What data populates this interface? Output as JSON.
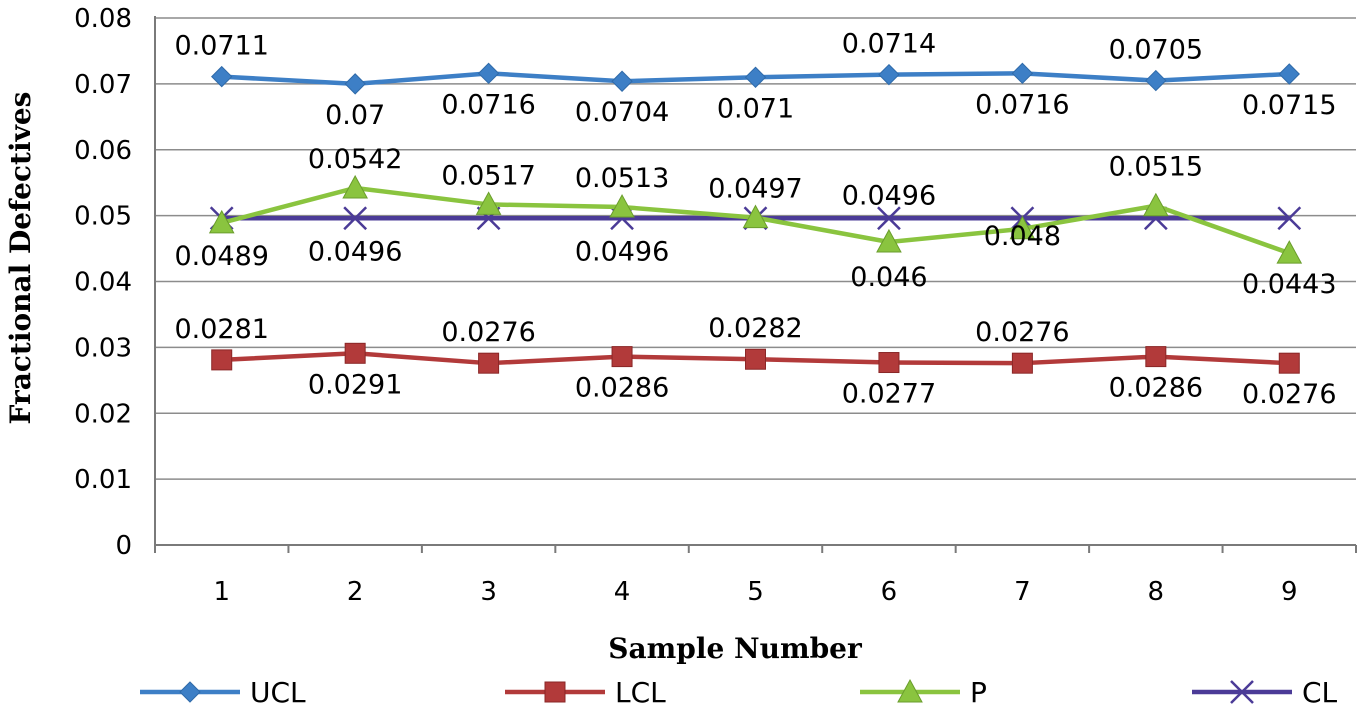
{
  "chart_data": {
    "type": "line",
    "title": "",
    "xlabel": "Sample Number",
    "ylabel": "Fractional Defectives",
    "categories": [
      "1",
      "2",
      "3",
      "4",
      "5",
      "6",
      "7",
      "8",
      "9"
    ],
    "ylim": [
      0,
      0.08
    ],
    "yticks": [
      "0",
      "0.01",
      "0.02",
      "0.03",
      "0.04",
      "0.05",
      "0.06",
      "0.07",
      "0.08"
    ],
    "grid": "horizontal",
    "legend": "bottom",
    "series": [
      {
        "name": "UCL",
        "color": "#3d7fc6",
        "marker": "diamond",
        "values": [
          0.0711,
          0.07,
          0.0716,
          0.0704,
          0.071,
          0.0714,
          0.0716,
          0.0705,
          0.0715
        ],
        "labels": [
          "0.0711",
          "0.07",
          "0.0716",
          "0.0704",
          "0.071",
          "0.0714",
          "0.0716",
          "0.0705",
          "0.0715"
        ]
      },
      {
        "name": "LCL",
        "color": "#b23a3a",
        "marker": "square",
        "values": [
          0.0281,
          0.0291,
          0.0276,
          0.0286,
          0.0282,
          0.0277,
          0.0276,
          0.0286,
          0.0276
        ],
        "labels": [
          "0.0281",
          "0.0291",
          "0.0276",
          "0.0286",
          "0.0282",
          "0.0277",
          "0.0276",
          "0.0286",
          "0.0276"
        ]
      },
      {
        "name": "P",
        "color": "#8ac43f",
        "marker": "triangle",
        "values": [
          0.0489,
          0.0542,
          0.0517,
          0.0513,
          0.0497,
          0.046,
          0.048,
          0.0515,
          0.0443
        ],
        "labels": [
          "0.0489",
          "0.0542",
          "0.0517",
          "0.0513",
          "0.0497",
          "0.046",
          "0.048",
          "0.0515",
          "0.0443"
        ]
      },
      {
        "name": "CL",
        "color": "#4b3b97",
        "marker": "x",
        "values": [
          0.0496,
          0.0496,
          0.0496,
          0.0496,
          0.0496,
          0.0496,
          0.0496,
          0.0496,
          0.0496
        ],
        "labels": [
          "",
          "0.0496",
          "",
          "0.0496",
          "",
          "0.0496",
          "",
          "",
          ""
        ]
      }
    ]
  }
}
